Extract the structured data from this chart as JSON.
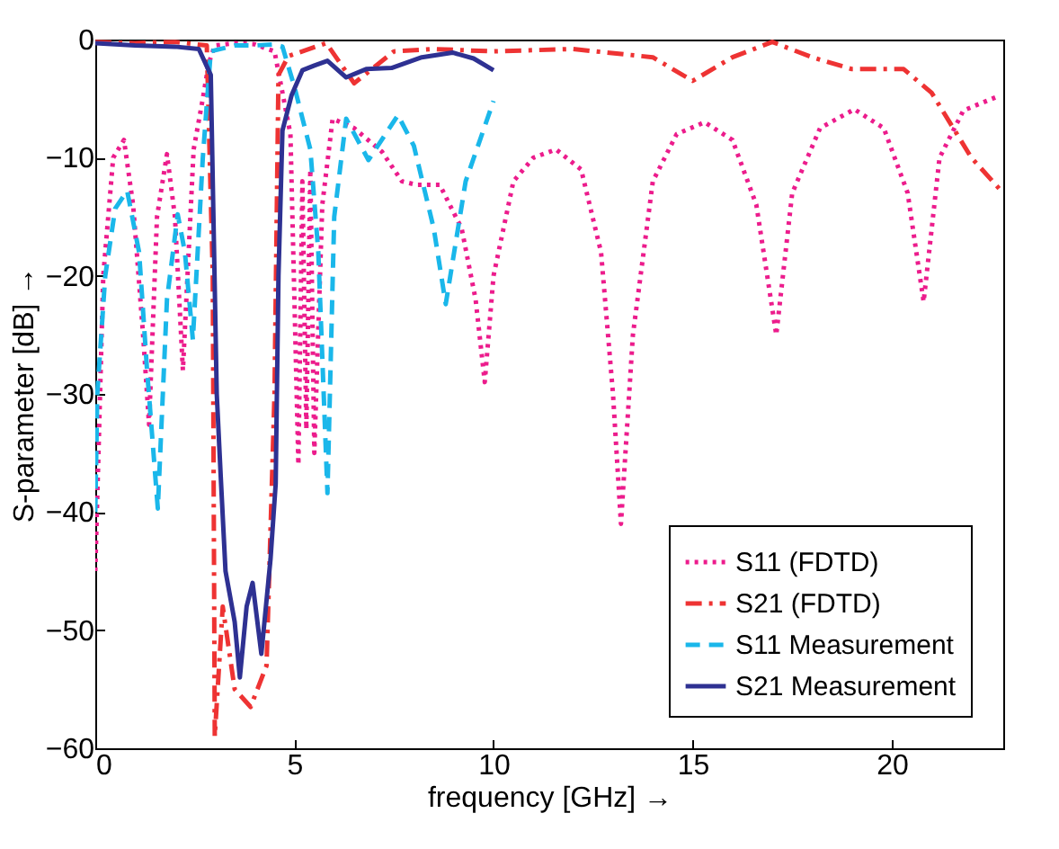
{
  "chart_data": {
    "type": "line",
    "xlabel": "frequency [GHz] →",
    "ylabel": "S-parameter [dB] →",
    "xlim": [
      0,
      22.8
    ],
    "ylim": [
      -60,
      0
    ],
    "xticks": [
      0,
      5,
      10,
      15,
      20
    ],
    "yticks": [
      -60,
      -50,
      -40,
      -30,
      -20,
      -10,
      0
    ],
    "grid": false,
    "legend": "bottom right",
    "series": [
      {
        "name": "S11 (FDTD)",
        "color": "#ec1c8c",
        "line_style": "dotted",
        "x": [
          0,
          0.2,
          0.45,
          0.72,
          0.95,
          1.2,
          1.35,
          1.55,
          1.8,
          2.0,
          2.2,
          2.47,
          2.7,
          2.85,
          3.0,
          3.5,
          4.0,
          4.5,
          4.9,
          5.1,
          5.2,
          5.3,
          5.4,
          5.5,
          5.7,
          5.96,
          6.5,
          7.2,
          7.7,
          8.07,
          8.65,
          9.2,
          9.55,
          9.78,
          10.0,
          10.5,
          11.0,
          11.57,
          12.2,
          12.7,
          13.0,
          13.2,
          13.5,
          14.0,
          14.6,
          15.3,
          16.0,
          16.6,
          17.1,
          17.5,
          18.2,
          19.06,
          19.8,
          20.4,
          20.8,
          21.2,
          21.8,
          22.6
        ],
        "values": [
          -45,
          -20,
          -10,
          -8.5,
          -14,
          -25,
          -32.6,
          -15,
          -9.7,
          -15,
          -28,
          -9.3,
          -5,
          -2,
          -0.5,
          -0.3,
          -0.4,
          -1,
          -8,
          -36,
          -12,
          -33,
          -11,
          -35,
          -14,
          -6.7,
          -7.5,
          -9.5,
          -12,
          -12.3,
          -12.3,
          -16,
          -22,
          -29,
          -20,
          -12,
          -10,
          -9.3,
          -11,
          -18,
          -30,
          -41,
          -25,
          -12,
          -8,
          -7,
          -8.5,
          -14,
          -25,
          -13,
          -7.5,
          -5.9,
          -7.5,
          -13,
          -22.2,
          -10,
          -6,
          -4.9
        ]
      },
      {
        "name": "S21 (FDTD)",
        "color": "#ee3333",
        "line_style": "dashdot",
        "x": [
          0,
          1,
          2,
          2.8,
          2.95,
          3.0,
          3.2,
          3.5,
          3.9,
          4.3,
          4.5,
          4.6,
          4.85,
          5.8,
          6.5,
          7.5,
          8.5,
          10,
          12,
          14,
          15,
          16,
          17,
          18,
          19,
          20.3,
          21,
          22,
          22.8
        ],
        "values": [
          -0.2,
          -0.3,
          -0.2,
          -0.5,
          -20,
          -59,
          -48,
          -55,
          -56.5,
          -53,
          -30,
          -3,
          -1.4,
          -0.3,
          -3.7,
          -1,
          -0.8,
          -1,
          -0.8,
          -1.5,
          -3.5,
          -1.5,
          -0.2,
          -1.5,
          -2.5,
          -2.5,
          -4.5,
          -10,
          -13
        ]
      },
      {
        "name": "S11 Measurement",
        "color": "#1ab7ea",
        "line_style": "dashed",
        "x": [
          0,
          0.05,
          0.25,
          0.5,
          0.8,
          1.1,
          1.3,
          1.57,
          1.8,
          2.07,
          2.25,
          2.45,
          2.7,
          2.9,
          3.5,
          4.0,
          4.5,
          4.7,
          5.0,
          5.4,
          5.6,
          5.83,
          6.0,
          6.3,
          6.86,
          7.6,
          8.0,
          8.5,
          8.8,
          9.3,
          10.0
        ],
        "values": [
          -40,
          -30,
          -20,
          -14.3,
          -12.8,
          -18,
          -28,
          -39.7,
          -22,
          -14.8,
          -18,
          -25.4,
          -10,
          -1,
          -0.5,
          -0.5,
          -0.4,
          -0.6,
          -4,
          -9.3,
          -18,
          -38.4,
          -15,
          -6.7,
          -10.2,
          -6.4,
          -9,
          -16,
          -22.4,
          -12,
          -5.2
        ]
      },
      {
        "name": "S21 Measurement",
        "color": "#2e3192",
        "line_style": "solid",
        "x": [
          0,
          1,
          2,
          2.6,
          2.9,
          3.05,
          3.15,
          3.27,
          3.5,
          3.63,
          3.8,
          3.95,
          4.17,
          4.4,
          4.53,
          4.6,
          4.7,
          4.93,
          5.2,
          5.5,
          5.83,
          6.3,
          6.8,
          7.44,
          8.2,
          8.97,
          9.5,
          10.0
        ],
        "values": [
          -0.3,
          -0.5,
          -0.6,
          -0.8,
          -3,
          -30,
          -37,
          -45,
          -49.3,
          -54,
          -48,
          -46,
          -52,
          -44,
          -37.6,
          -20,
          -7.7,
          -4.7,
          -2.6,
          -2.2,
          -1.8,
          -3.2,
          -2.5,
          -2.4,
          -1.5,
          -1.1,
          -1.6,
          -2.6
        ]
      }
    ]
  }
}
